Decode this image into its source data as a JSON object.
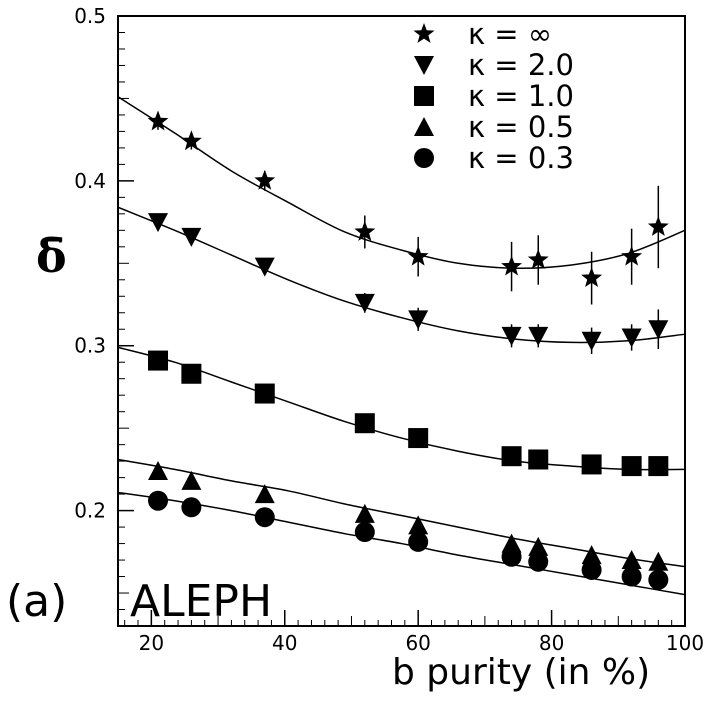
{
  "chart_data": {
    "type": "scatter",
    "panel_label": "(a)",
    "experiment_label": "ALEPH",
    "xlabel": "b purity (in %)",
    "ylabel": "δ̄",
    "xlim": [
      15,
      100
    ],
    "ylim": [
      0.13,
      0.5
    ],
    "x_ticks": [
      20,
      40,
      60,
      80,
      100
    ],
    "y_ticks": [
      0.2,
      0.3,
      0.4,
      0.5
    ],
    "x_tick_labels": [
      "20",
      "40",
      "60",
      "80",
      "100"
    ],
    "y_tick_labels": [
      "0.2",
      "0.3",
      "0.4",
      "0.5"
    ],
    "grid": false,
    "legend_position": "top-right",
    "series": [
      {
        "name": "κ = ∞",
        "marker": "star",
        "x": [
          21,
          26,
          37,
          52,
          60,
          74,
          78,
          86,
          92,
          96
        ],
        "y": [
          0.436,
          0.424,
          0.4,
          0.369,
          0.354,
          0.348,
          0.352,
          0.341,
          0.354,
          0.372
        ],
        "err": [
          0.005,
          0.005,
          0.006,
          0.01,
          0.012,
          0.015,
          0.015,
          0.016,
          0.017,
          0.025
        ],
        "fit": [
          0.451,
          0.429,
          0.406,
          0.387,
          0.369,
          0.358,
          0.35,
          0.347,
          0.349,
          0.356,
          0.37
        ]
      },
      {
        "name": "κ = 2.0",
        "marker": "triangle-down",
        "x": [
          21,
          26,
          37,
          52,
          60,
          74,
          78,
          86,
          92,
          96
        ],
        "y": [
          0.375,
          0.366,
          0.348,
          0.326,
          0.316,
          0.306,
          0.306,
          0.303,
          0.305,
          0.31
        ],
        "err": [
          0.004,
          0.004,
          0.005,
          0.006,
          0.007,
          0.007,
          0.007,
          0.008,
          0.008,
          0.012
        ],
        "fit": [
          0.384,
          0.37,
          0.355,
          0.34,
          0.327,
          0.317,
          0.309,
          0.304,
          0.302,
          0.303,
          0.307
        ]
      },
      {
        "name": "κ = 1.0",
        "marker": "square",
        "x": [
          21,
          26,
          37,
          52,
          60,
          74,
          78,
          86,
          92,
          96
        ],
        "y": [
          0.291,
          0.283,
          0.271,
          0.253,
          0.244,
          0.233,
          0.231,
          0.228,
          0.227,
          0.227
        ],
        "err": [
          0.003,
          0.003,
          0.003,
          0.004,
          0.004,
          0.004,
          0.004,
          0.004,
          0.004,
          0.005
        ],
        "fit": [
          0.299,
          0.29,
          0.278,
          0.266,
          0.254,
          0.244,
          0.236,
          0.23,
          0.227,
          0.225,
          0.225
        ]
      },
      {
        "name": "κ = 0.5",
        "marker": "triangle-up",
        "x": [
          21,
          26,
          37,
          52,
          60,
          74,
          78,
          86,
          92,
          96
        ],
        "y": [
          0.224,
          0.218,
          0.21,
          0.198,
          0.191,
          0.18,
          0.178,
          0.173,
          0.17,
          0.169
        ],
        "err": [
          0.003,
          0.003,
          0.003,
          0.003,
          0.003,
          0.003,
          0.003,
          0.004,
          0.004,
          0.004
        ],
        "fit": [
          0.231,
          0.225,
          0.218,
          0.212,
          0.204,
          0.197,
          0.19,
          0.183,
          0.177,
          0.171,
          0.166
        ]
      },
      {
        "name": "κ = 0.3",
        "marker": "circle",
        "x": [
          21,
          26,
          37,
          52,
          60,
          74,
          78,
          86,
          92,
          96
        ],
        "y": [
          0.206,
          0.202,
          0.196,
          0.187,
          0.181,
          0.172,
          0.169,
          0.164,
          0.16,
          0.158
        ],
        "err": [
          0.002,
          0.002,
          0.002,
          0.003,
          0.003,
          0.003,
          0.003,
          0.003,
          0.003,
          0.003
        ],
        "fit": [
          0.211,
          0.206,
          0.2,
          0.193,
          0.186,
          0.18,
          0.173,
          0.167,
          0.161,
          0.155,
          0.149
        ]
      }
    ]
  }
}
